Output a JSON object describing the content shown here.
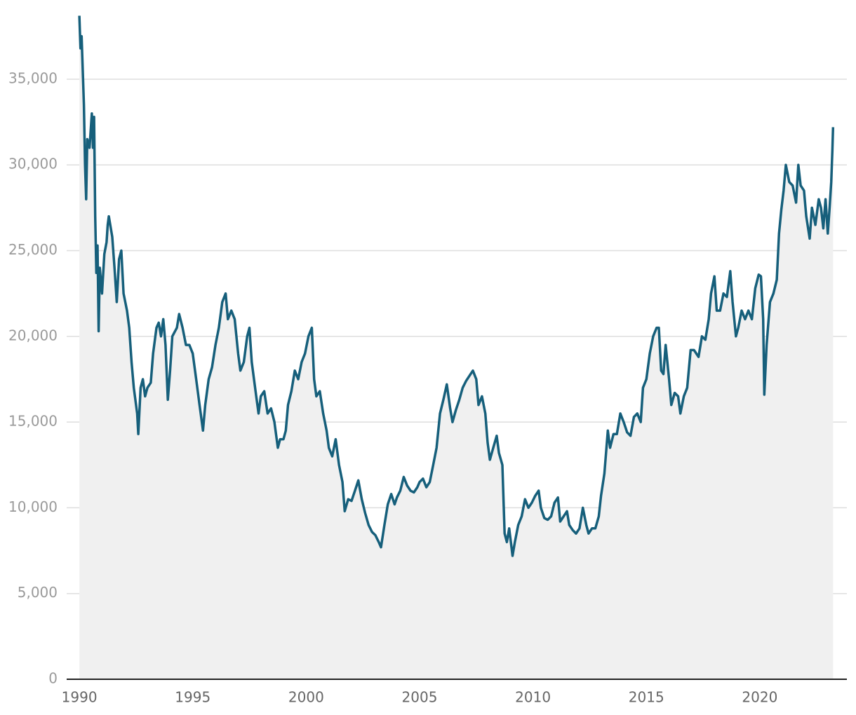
{
  "chart_data": {
    "type": "line",
    "x": [
      1990.0,
      1990.05,
      1990.1,
      1990.2,
      1990.25,
      1990.3,
      1990.35,
      1990.45,
      1990.55,
      1990.6,
      1990.65,
      1990.7,
      1990.75,
      1990.8,
      1990.85,
      1990.9,
      1991.0,
      1991.1,
      1991.2,
      1991.25,
      1991.3,
      1991.45,
      1991.55,
      1991.65,
      1991.75,
      1991.85,
      1991.95,
      1992.1,
      1992.2,
      1992.3,
      1992.4,
      1992.45,
      1992.55,
      1992.6,
      1992.7,
      1992.8,
      1992.9,
      1993.0,
      1993.15,
      1993.25,
      1993.4,
      1993.5,
      1993.6,
      1993.7,
      1993.8,
      1993.9,
      1994.0,
      1994.1,
      1994.3,
      1994.4,
      1994.55,
      1994.7,
      1994.85,
      1995.0,
      1995.15,
      1995.3,
      1995.45,
      1995.55,
      1995.7,
      1995.85,
      1996.0,
      1996.15,
      1996.3,
      1996.45,
      1996.55,
      1996.7,
      1996.85,
      1997.0,
      1997.1,
      1997.25,
      1997.4,
      1997.5,
      1997.6,
      1997.7,
      1997.8,
      1997.9,
      1998.0,
      1998.15,
      1998.3,
      1998.45,
      1998.6,
      1998.75,
      1998.85,
      1999.0,
      1999.1,
      1999.2,
      1999.35,
      1999.5,
      1999.65,
      1999.8,
      1999.95,
      2000.1,
      2000.25,
      2000.35,
      2000.45,
      2000.6,
      2000.75,
      2000.9,
      2001.0,
      2001.15,
      2001.3,
      2001.45,
      2001.6,
      2001.7,
      2001.85,
      2002.0,
      2002.15,
      2002.3,
      2002.45,
      2002.6,
      2002.75,
      2002.9,
      2003.05,
      2003.2,
      2003.3,
      2003.45,
      2003.6,
      2003.75,
      2003.9,
      2004.0,
      2004.15,
      2004.3,
      2004.45,
      2004.6,
      2004.75,
      2004.9,
      2005.0,
      2005.15,
      2005.3,
      2005.45,
      2005.6,
      2005.75,
      2005.9,
      2006.05,
      2006.2,
      2006.35,
      2006.45,
      2006.6,
      2006.75,
      2006.9,
      2007.05,
      2007.2,
      2007.35,
      2007.5,
      2007.6,
      2007.75,
      2007.9,
      2008.0,
      2008.1,
      2008.25,
      2008.4,
      2008.5,
      2008.65,
      2008.75,
      2008.85,
      2008.95,
      2009.1,
      2009.2,
      2009.35,
      2009.5,
      2009.65,
      2009.8,
      2009.95,
      2010.1,
      2010.25,
      2010.35,
      2010.5,
      2010.65,
      2010.8,
      2010.95,
      2011.1,
      2011.2,
      2011.35,
      2011.5,
      2011.6,
      2011.75,
      2011.9,
      2012.05,
      2012.2,
      2012.35,
      2012.45,
      2012.6,
      2012.75,
      2012.9,
      2013.0,
      2013.15,
      2013.3,
      2013.4,
      2013.55,
      2013.7,
      2013.85,
      2014.0,
      2014.15,
      2014.3,
      2014.45,
      2014.6,
      2014.75,
      2014.85,
      2015.0,
      2015.15,
      2015.3,
      2015.45,
      2015.55,
      2015.65,
      2015.75,
      2015.85,
      2016.0,
      2016.1,
      2016.25,
      2016.4,
      2016.5,
      2016.65,
      2016.8,
      2016.95,
      2017.1,
      2017.3,
      2017.45,
      2017.6,
      2017.75,
      2017.85,
      2018.0,
      2018.1,
      2018.25,
      2018.4,
      2018.55,
      2018.7,
      2018.8,
      2018.95,
      2019.05,
      2019.2,
      2019.35,
      2019.5,
      2019.65,
      2019.8,
      2019.95,
      2020.05,
      2020.15,
      2020.2,
      2020.3,
      2020.45,
      2020.6,
      2020.75,
      2020.85,
      2020.95,
      2021.05,
      2021.15,
      2021.3,
      2021.45,
      2021.6,
      2021.7,
      2021.8,
      2021.95,
      2022.05,
      2022.2,
      2022.3,
      2022.45,
      2022.6,
      2022.7,
      2022.8,
      2022.9,
      2023.0,
      2023.08,
      2023.15,
      2023.2,
      2023.23
    ],
    "values": [
      38700,
      36800,
      37500,
      33500,
      30000,
      28000,
      31500,
      31000,
      33000,
      31000,
      32800,
      27000,
      23700,
      25300,
      20300,
      24000,
      22500,
      24800,
      25500,
      26500,
      27000,
      25800,
      24000,
      22000,
      24500,
      25000,
      22500,
      21500,
      20500,
      18500,
      17000,
      16500,
      15500,
      14300,
      17000,
      17500,
      16500,
      17000,
      17300,
      19000,
      20500,
      20800,
      20000,
      21000,
      19500,
      16300,
      18000,
      20000,
      20500,
      21300,
      20500,
      19500,
      19500,
      19000,
      17500,
      16000,
      14500,
      16000,
      17500,
      18200,
      19500,
      20500,
      22000,
      22500,
      21000,
      21500,
      21000,
      19000,
      18000,
      18500,
      20000,
      20500,
      18500,
      17500,
      16500,
      15500,
      16500,
      16800,
      15500,
      15800,
      15000,
      13500,
      14000,
      14000,
      14500,
      16000,
      16800,
      18000,
      17500,
      18500,
      19000,
      20000,
      20500,
      17500,
      16500,
      16800,
      15500,
      14500,
      13500,
      13000,
      14000,
      12500,
      11500,
      9800,
      10500,
      10400,
      11000,
      11600,
      10500,
      9700,
      9000,
      8600,
      8400,
      8000,
      7700,
      9000,
      10200,
      10800,
      10200,
      10600,
      11000,
      11800,
      11300,
      11000,
      10900,
      11200,
      11500,
      11700,
      11200,
      11500,
      12500,
      13500,
      15500,
      16300,
      17200,
      15800,
      15000,
      15700,
      16300,
      17000,
      17400,
      17700,
      18000,
      17500,
      16000,
      16500,
      15500,
      13800,
      12800,
      13500,
      14200,
      13200,
      12500,
      8500,
      8000,
      8800,
      7200,
      8000,
      9000,
      9500,
      10500,
      10000,
      10300,
      10700,
      11000,
      10000,
      9400,
      9300,
      9500,
      10300,
      10600,
      9200,
      9500,
      9800,
      9000,
      8700,
      8500,
      8800,
      10000,
      9000,
      8500,
      8800,
      8800,
      9500,
      10700,
      12000,
      14500,
      13500,
      14300,
      14300,
      15500,
      15000,
      14400,
      14200,
      15300,
      15500,
      15000,
      17000,
      17500,
      19000,
      20000,
      20500,
      20500,
      18000,
      17800,
      19500,
      17500,
      16000,
      16700,
      16500,
      15500,
      16500,
      17000,
      19200,
      19200,
      18800,
      20000,
      19800,
      21000,
      22500,
      23500,
      21500,
      21500,
      22500,
      22300,
      23800,
      22000,
      20000,
      20500,
      21500,
      21000,
      21500,
      21000,
      22800,
      23600,
      23500,
      21000,
      16600,
      19500,
      22000,
      22500,
      23300,
      26000,
      27400,
      28500,
      30000,
      29000,
      28800,
      27800,
      30000,
      28800,
      28500,
      27000,
      25700,
      27500,
      26500,
      28000,
      27500,
      26300,
      28000,
      26000,
      27500,
      29000,
      30800,
      32200
    ],
    "color": "#165f7b",
    "fill_color": "#f0f0f0",
    "xlim": [
      1989.44,
      2023.84
    ],
    "xticks": [
      1990,
      1995,
      2000,
      2005,
      2010,
      2015,
      2020
    ],
    "ylim": [
      0,
      38800
    ],
    "yticks": [
      0,
      {
        "value": 5000,
        "label": "5,000"
      },
      {
        "value": 10000,
        "label": "10,000"
      },
      {
        "value": 15000,
        "label": "15,000"
      },
      {
        "value": 20000,
        "label": "20,000"
      },
      {
        "value": 25000,
        "label": "25,000"
      },
      {
        "value": 30000,
        "label": "30,000"
      },
      {
        "value": 35000,
        "label": "35,000"
      }
    ],
    "grid": true
  }
}
